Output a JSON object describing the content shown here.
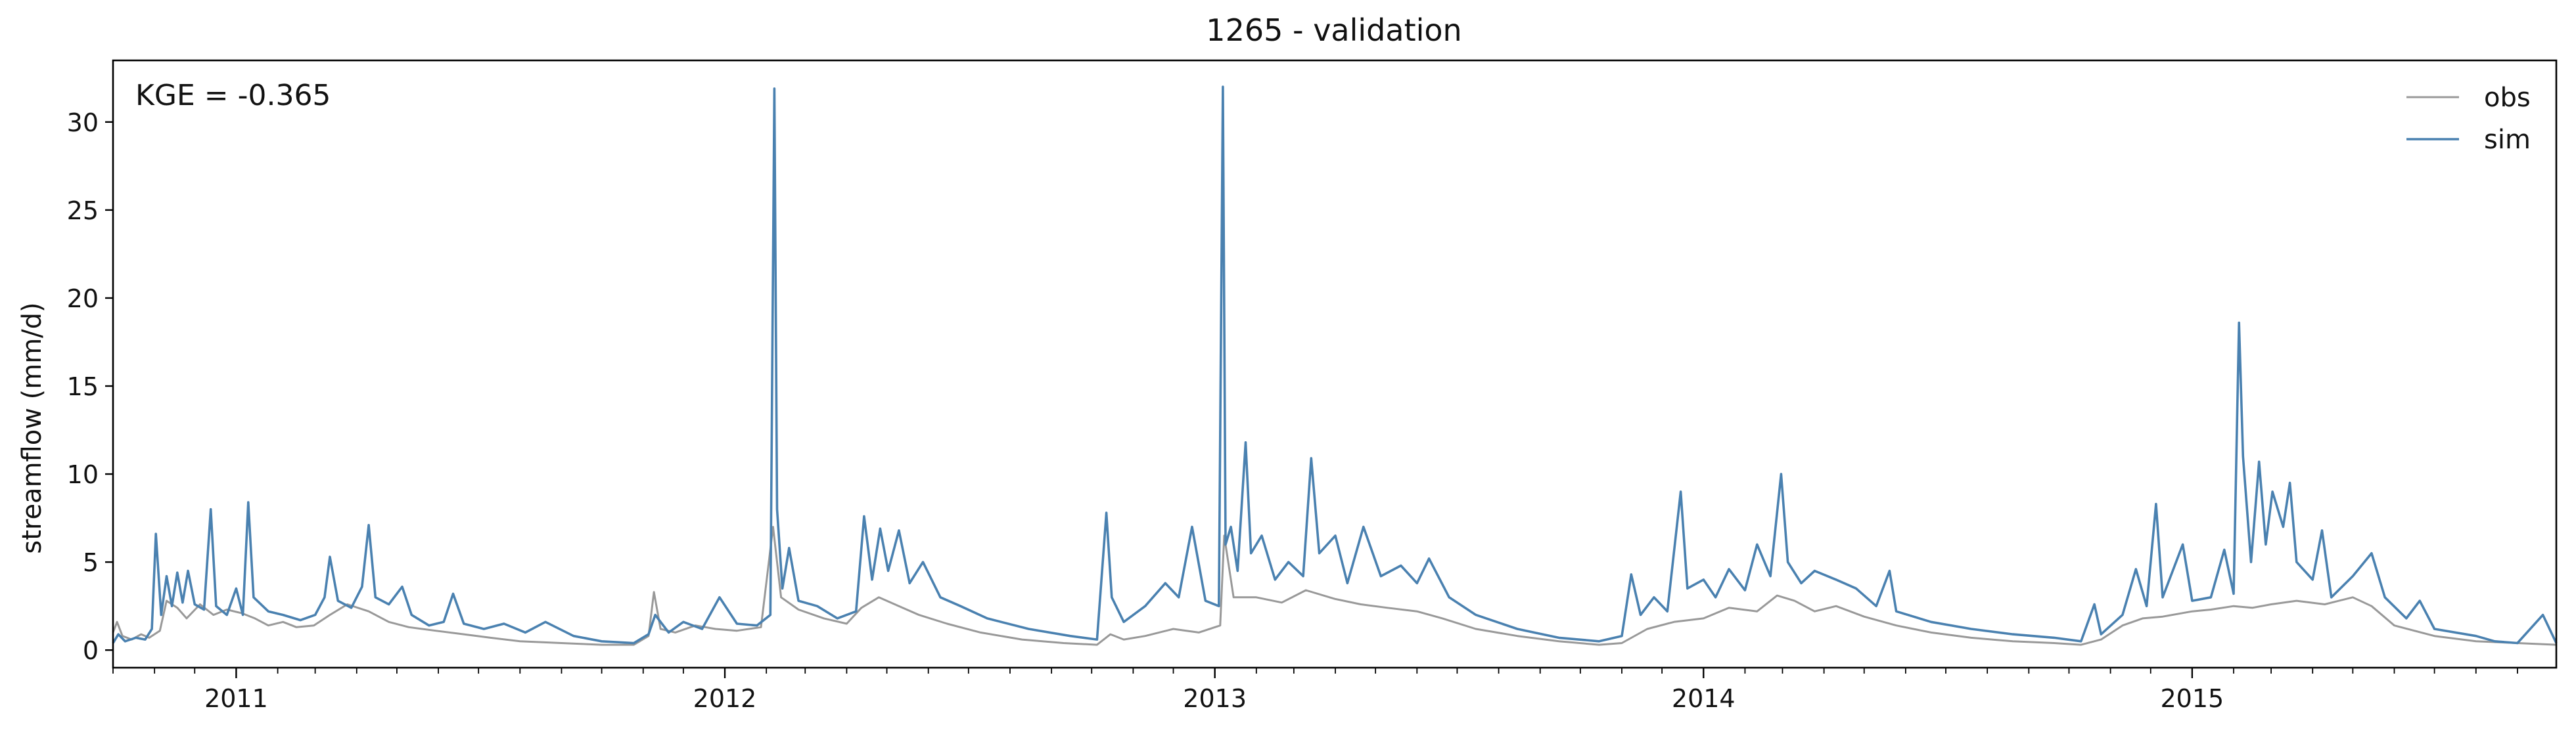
{
  "chart_data": {
    "type": "line",
    "title": "1265 - validation",
    "xlabel": "",
    "ylabel": "streamflow (mm/d)",
    "annotation": "KGE = -0.365",
    "xlim": [
      "2010-10-01",
      "2015-09-30"
    ],
    "ylim": [
      -1,
      33.5
    ],
    "y_ticks": [
      0,
      5,
      10,
      15,
      20,
      25,
      30
    ],
    "x_tick_labels": [
      "2011",
      "2012",
      "2013",
      "2014",
      "2015"
    ],
    "x_ticks": [
      "2011-01-01",
      "2012-01-01",
      "2013-01-01",
      "2014-01-01",
      "2015-01-01"
    ],
    "grid": false,
    "legend_position": "top-right",
    "series": [
      {
        "name": "obs",
        "color": "#999999",
        "points": [
          [
            "2010-10-01",
            1.0
          ],
          [
            "2010-10-04",
            1.6
          ],
          [
            "2010-10-08",
            0.8
          ],
          [
            "2010-10-15",
            0.6
          ],
          [
            "2010-10-22",
            0.9
          ],
          [
            "2010-10-28",
            0.7
          ],
          [
            "2010-11-05",
            1.1
          ],
          [
            "2010-11-10",
            2.8
          ],
          [
            "2010-11-18",
            2.4
          ],
          [
            "2010-11-25",
            1.8
          ],
          [
            "2010-12-05",
            2.6
          ],
          [
            "2010-12-15",
            2.0
          ],
          [
            "2010-12-25",
            2.3
          ],
          [
            "2011-01-05",
            2.1
          ],
          [
            "2011-01-15",
            1.8
          ],
          [
            "2011-01-25",
            1.4
          ],
          [
            "2011-02-05",
            1.6
          ],
          [
            "2011-02-15",
            1.3
          ],
          [
            "2011-02-28",
            1.4
          ],
          [
            "2011-03-12",
            2.0
          ],
          [
            "2011-03-25",
            2.6
          ],
          [
            "2011-04-10",
            2.2
          ],
          [
            "2011-04-25",
            1.6
          ],
          [
            "2011-05-10",
            1.3
          ],
          [
            "2011-05-30",
            1.1
          ],
          [
            "2011-06-20",
            0.9
          ],
          [
            "2011-07-10",
            0.7
          ],
          [
            "2011-08-01",
            0.5
          ],
          [
            "2011-09-01",
            0.4
          ],
          [
            "2011-10-01",
            0.3
          ],
          [
            "2011-10-25",
            0.3
          ],
          [
            "2011-11-05",
            0.8
          ],
          [
            "2011-11-09",
            3.3
          ],
          [
            "2011-11-14",
            1.2
          ],
          [
            "2011-11-25",
            1.0
          ],
          [
            "2011-12-10",
            1.4
          ],
          [
            "2011-12-25",
            1.2
          ],
          [
            "2012-01-10",
            1.1
          ],
          [
            "2012-01-28",
            1.3
          ],
          [
            "2012-02-06",
            7.0
          ],
          [
            "2012-02-12",
            3.0
          ],
          [
            "2012-02-25",
            2.3
          ],
          [
            "2012-03-15",
            1.8
          ],
          [
            "2012-04-01",
            1.5
          ],
          [
            "2012-04-12",
            2.4
          ],
          [
            "2012-04-25",
            3.0
          ],
          [
            "2012-05-10",
            2.5
          ],
          [
            "2012-05-25",
            2.0
          ],
          [
            "2012-06-15",
            1.5
          ],
          [
            "2012-07-10",
            1.0
          ],
          [
            "2012-08-10",
            0.6
          ],
          [
            "2012-09-10",
            0.4
          ],
          [
            "2012-10-05",
            0.3
          ],
          [
            "2012-10-15",
            0.9
          ],
          [
            "2012-10-25",
            0.6
          ],
          [
            "2012-11-10",
            0.8
          ],
          [
            "2012-12-01",
            1.2
          ],
          [
            "2012-12-20",
            1.0
          ],
          [
            "2013-01-05",
            1.4
          ],
          [
            "2013-01-08",
            6.5
          ],
          [
            "2013-01-15",
            3.0
          ],
          [
            "2013-02-01",
            3.0
          ],
          [
            "2013-02-20",
            2.7
          ],
          [
            "2013-03-10",
            3.4
          ],
          [
            "2013-04-01",
            2.9
          ],
          [
            "2013-04-20",
            2.6
          ],
          [
            "2013-05-10",
            2.4
          ],
          [
            "2013-06-01",
            2.2
          ],
          [
            "2013-06-20",
            1.8
          ],
          [
            "2013-07-15",
            1.2
          ],
          [
            "2013-08-15",
            0.8
          ],
          [
            "2013-09-15",
            0.5
          ],
          [
            "2013-10-15",
            0.3
          ],
          [
            "2013-11-01",
            0.4
          ],
          [
            "2013-11-20",
            1.2
          ],
          [
            "2013-12-10",
            1.6
          ],
          [
            "2014-01-01",
            1.8
          ],
          [
            "2014-01-20",
            2.4
          ],
          [
            "2014-02-10",
            2.2
          ],
          [
            "2014-02-25",
            3.1
          ],
          [
            "2014-03-10",
            2.8
          ],
          [
            "2014-03-25",
            2.2
          ],
          [
            "2014-04-10",
            2.5
          ],
          [
            "2014-05-01",
            1.9
          ],
          [
            "2014-05-25",
            1.4
          ],
          [
            "2014-06-20",
            1.0
          ],
          [
            "2014-07-20",
            0.7
          ],
          [
            "2014-08-20",
            0.5
          ],
          [
            "2014-09-20",
            0.4
          ],
          [
            "2014-10-10",
            0.3
          ],
          [
            "2014-10-25",
            0.6
          ],
          [
            "2014-11-10",
            1.4
          ],
          [
            "2014-11-25",
            1.8
          ],
          [
            "2014-12-10",
            1.9
          ],
          [
            "2015-01-01",
            2.2
          ],
          [
            "2015-01-15",
            2.3
          ],
          [
            "2015-02-01",
            2.5
          ],
          [
            "2015-02-15",
            2.4
          ],
          [
            "2015-03-01",
            2.6
          ],
          [
            "2015-03-20",
            2.8
          ],
          [
            "2015-04-10",
            2.6
          ],
          [
            "2015-05-01",
            3.0
          ],
          [
            "2015-05-15",
            2.5
          ],
          [
            "2015-06-01",
            1.4
          ],
          [
            "2015-07-01",
            0.8
          ],
          [
            "2015-08-01",
            0.5
          ],
          [
            "2015-09-01",
            0.4
          ],
          [
            "2015-09-30",
            0.3
          ]
        ]
      },
      {
        "name": "sim",
        "color": "#4a81b0",
        "points": [
          [
            "2010-10-01",
            0.4
          ],
          [
            "2010-10-05",
            0.9
          ],
          [
            "2010-10-10",
            0.5
          ],
          [
            "2010-10-18",
            0.7
          ],
          [
            "2010-10-25",
            0.6
          ],
          [
            "2010-10-30",
            1.2
          ],
          [
            "2010-11-02",
            6.6
          ],
          [
            "2010-11-06",
            2.0
          ],
          [
            "2010-11-10",
            4.2
          ],
          [
            "2010-11-14",
            2.5
          ],
          [
            "2010-11-18",
            4.4
          ],
          [
            "2010-11-22",
            2.7
          ],
          [
            "2010-11-26",
            4.5
          ],
          [
            "2010-12-01",
            2.6
          ],
          [
            "2010-12-08",
            2.3
          ],
          [
            "2010-12-13",
            8.0
          ],
          [
            "2010-12-17",
            2.5
          ],
          [
            "2010-12-25",
            2.0
          ],
          [
            "2011-01-01",
            3.5
          ],
          [
            "2011-01-06",
            2.0
          ],
          [
            "2011-01-10",
            8.4
          ],
          [
            "2011-01-14",
            3.0
          ],
          [
            "2011-01-25",
            2.2
          ],
          [
            "2011-02-05",
            2.0
          ],
          [
            "2011-02-18",
            1.7
          ],
          [
            "2011-03-01",
            2.0
          ],
          [
            "2011-03-08",
            3.0
          ],
          [
            "2011-03-12",
            5.3
          ],
          [
            "2011-03-18",
            2.8
          ],
          [
            "2011-03-28",
            2.4
          ],
          [
            "2011-04-05",
            3.6
          ],
          [
            "2011-04-10",
            7.1
          ],
          [
            "2011-04-15",
            3.0
          ],
          [
            "2011-04-25",
            2.6
          ],
          [
            "2011-05-05",
            3.6
          ],
          [
            "2011-05-12",
            2.0
          ],
          [
            "2011-05-25",
            1.4
          ],
          [
            "2011-06-05",
            1.6
          ],
          [
            "2011-06-12",
            3.2
          ],
          [
            "2011-06-20",
            1.5
          ],
          [
            "2011-07-05",
            1.2
          ],
          [
            "2011-07-20",
            1.5
          ],
          [
            "2011-08-05",
            1.0
          ],
          [
            "2011-08-20",
            1.6
          ],
          [
            "2011-09-10",
            0.8
          ],
          [
            "2011-10-01",
            0.5
          ],
          [
            "2011-10-25",
            0.4
          ],
          [
            "2011-11-05",
            0.9
          ],
          [
            "2011-11-10",
            2.0
          ],
          [
            "2011-11-20",
            1.0
          ],
          [
            "2011-12-01",
            1.6
          ],
          [
            "2011-12-15",
            1.2
          ],
          [
            "2011-12-28",
            3.0
          ],
          [
            "2012-01-10",
            1.5
          ],
          [
            "2012-01-25",
            1.4
          ],
          [
            "2012-02-04",
            2.0
          ],
          [
            "2012-02-07",
            31.9
          ],
          [
            "2012-02-09",
            8.0
          ],
          [
            "2012-02-13",
            3.5
          ],
          [
            "2012-02-18",
            5.8
          ],
          [
            "2012-02-25",
            2.8
          ],
          [
            "2012-03-10",
            2.5
          ],
          [
            "2012-03-25",
            1.8
          ],
          [
            "2012-04-08",
            2.2
          ],
          [
            "2012-04-14",
            7.6
          ],
          [
            "2012-04-20",
            4.0
          ],
          [
            "2012-04-26",
            6.9
          ],
          [
            "2012-05-02",
            4.5
          ],
          [
            "2012-05-10",
            6.8
          ],
          [
            "2012-05-18",
            3.8
          ],
          [
            "2012-05-28",
            5.0
          ],
          [
            "2012-06-10",
            3.0
          ],
          [
            "2012-06-25",
            2.5
          ],
          [
            "2012-07-15",
            1.8
          ],
          [
            "2012-08-15",
            1.2
          ],
          [
            "2012-09-15",
            0.8
          ],
          [
            "2012-10-05",
            0.6
          ],
          [
            "2012-10-12",
            7.8
          ],
          [
            "2012-10-16",
            3.0
          ],
          [
            "2012-10-25",
            1.6
          ],
          [
            "2012-11-10",
            2.5
          ],
          [
            "2012-11-25",
            3.8
          ],
          [
            "2012-12-05",
            3.0
          ],
          [
            "2012-12-15",
            7.0
          ],
          [
            "2012-12-25",
            2.8
          ],
          [
            "2013-01-04",
            2.5
          ],
          [
            "2013-01-07",
            32.0
          ],
          [
            "2013-01-09",
            6.0
          ],
          [
            "2013-01-13",
            7.0
          ],
          [
            "2013-01-18",
            4.5
          ],
          [
            "2013-01-24",
            11.8
          ],
          [
            "2013-01-28",
            5.5
          ],
          [
            "2013-02-05",
            6.5
          ],
          [
            "2013-02-15",
            4.0
          ],
          [
            "2013-02-25",
            5.0
          ],
          [
            "2013-03-08",
            4.2
          ],
          [
            "2013-03-14",
            10.9
          ],
          [
            "2013-03-20",
            5.5
          ],
          [
            "2013-04-01",
            6.5
          ],
          [
            "2013-04-10",
            3.8
          ],
          [
            "2013-04-22",
            7.0
          ],
          [
            "2013-05-05",
            4.2
          ],
          [
            "2013-05-20",
            4.8
          ],
          [
            "2013-06-01",
            3.8
          ],
          [
            "2013-06-10",
            5.2
          ],
          [
            "2013-06-25",
            3.0
          ],
          [
            "2013-07-15",
            2.0
          ],
          [
            "2013-08-15",
            1.2
          ],
          [
            "2013-09-15",
            0.7
          ],
          [
            "2013-10-15",
            0.5
          ],
          [
            "2013-11-01",
            0.8
          ],
          [
            "2013-11-08",
            4.3
          ],
          [
            "2013-11-15",
            2.0
          ],
          [
            "2013-11-25",
            3.0
          ],
          [
            "2013-12-05",
            2.2
          ],
          [
            "2013-12-15",
            9.0
          ],
          [
            "2013-12-20",
            3.5
          ],
          [
            "2014-01-01",
            4.0
          ],
          [
            "2014-01-10",
            3.0
          ],
          [
            "2014-01-20",
            4.6
          ],
          [
            "2014-02-01",
            3.4
          ],
          [
            "2014-02-10",
            6.0
          ],
          [
            "2014-02-20",
            4.2
          ],
          [
            "2014-02-28",
            10.0
          ],
          [
            "2014-03-05",
            5.0
          ],
          [
            "2014-03-15",
            3.8
          ],
          [
            "2014-03-25",
            4.5
          ],
          [
            "2014-04-10",
            4.0
          ],
          [
            "2014-04-25",
            3.5
          ],
          [
            "2014-05-10",
            2.5
          ],
          [
            "2014-05-20",
            4.5
          ],
          [
            "2014-05-25",
            2.2
          ],
          [
            "2014-06-20",
            1.6
          ],
          [
            "2014-07-20",
            1.2
          ],
          [
            "2014-08-20",
            0.9
          ],
          [
            "2014-09-20",
            0.7
          ],
          [
            "2014-10-10",
            0.5
          ],
          [
            "2014-10-20",
            2.6
          ],
          [
            "2014-10-25",
            0.9
          ],
          [
            "2014-11-10",
            2.0
          ],
          [
            "2014-11-20",
            4.6
          ],
          [
            "2014-11-28",
            2.5
          ],
          [
            "2014-12-05",
            8.3
          ],
          [
            "2014-12-10",
            3.0
          ],
          [
            "2014-12-25",
            6.0
          ],
          [
            "2015-01-01",
            2.8
          ],
          [
            "2015-01-15",
            3.0
          ],
          [
            "2015-01-25",
            5.7
          ],
          [
            "2015-02-01",
            3.2
          ],
          [
            "2015-02-05",
            18.6
          ],
          [
            "2015-02-08",
            11.0
          ],
          [
            "2015-02-14",
            5.0
          ],
          [
            "2015-02-20",
            10.7
          ],
          [
            "2015-02-25",
            6.0
          ],
          [
            "2015-03-02",
            9.0
          ],
          [
            "2015-03-10",
            7.0
          ],
          [
            "2015-03-15",
            9.5
          ],
          [
            "2015-03-20",
            5.0
          ],
          [
            "2015-04-01",
            4.0
          ],
          [
            "2015-04-08",
            6.8
          ],
          [
            "2015-04-15",
            3.0
          ],
          [
            "2015-05-01",
            4.2
          ],
          [
            "2015-05-15",
            5.5
          ],
          [
            "2015-05-25",
            3.0
          ],
          [
            "2015-06-10",
            1.8
          ],
          [
            "2015-06-20",
            2.8
          ],
          [
            "2015-07-01",
            1.2
          ],
          [
            "2015-08-01",
            0.8
          ],
          [
            "2015-08-15",
            0.5
          ],
          [
            "2015-09-01",
            0.4
          ],
          [
            "2015-09-20",
            2.0
          ],
          [
            "2015-09-30",
            0.4
          ]
        ]
      }
    ]
  }
}
